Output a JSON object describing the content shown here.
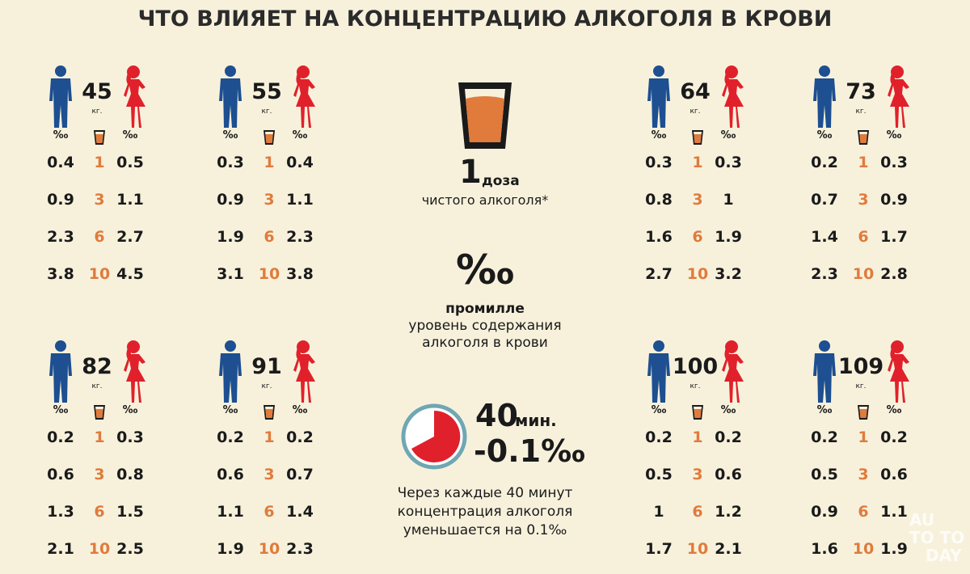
{
  "title": "ЧТО ВЛИЯЕТ НА КОНЦЕНТРАЦИЮ АЛКОГОЛЯ В КРОВИ",
  "units": {
    "weight": "кг.",
    "permille": "‰"
  },
  "panels": [
    {
      "weight": 45,
      "rows": [
        [
          0.4,
          1,
          0.5
        ],
        [
          0.9,
          3,
          1.1
        ],
        [
          2.3,
          6,
          2.7
        ],
        [
          3.8,
          10,
          4.5
        ]
      ]
    },
    {
      "weight": 55,
      "rows": [
        [
          0.3,
          1,
          0.4
        ],
        [
          0.9,
          3,
          1.1
        ],
        [
          1.9,
          6,
          2.3
        ],
        [
          3.1,
          10,
          3.8
        ]
      ]
    },
    {
      "weight": 64,
      "rows": [
        [
          0.3,
          1,
          0.3
        ],
        [
          0.8,
          3,
          1
        ],
        [
          1.6,
          6,
          1.9
        ],
        [
          2.7,
          10,
          3.2
        ]
      ]
    },
    {
      "weight": 73,
      "rows": [
        [
          0.2,
          1,
          0.3
        ],
        [
          0.7,
          3,
          0.9
        ],
        [
          1.4,
          6,
          1.7
        ],
        [
          2.3,
          10,
          2.8
        ]
      ]
    },
    {
      "weight": 82,
      "rows": [
        [
          0.2,
          1,
          0.3
        ],
        [
          0.6,
          3,
          0.8
        ],
        [
          1.3,
          6,
          1.5
        ],
        [
          2.1,
          10,
          2.5
        ]
      ]
    },
    {
      "weight": 91,
      "rows": [
        [
          0.2,
          1,
          0.2
        ],
        [
          0.6,
          3,
          0.7
        ],
        [
          1.1,
          6,
          1.4
        ],
        [
          1.9,
          10,
          2.3
        ]
      ]
    },
    {
      "weight": 100,
      "rows": [
        [
          0.2,
          1,
          0.2
        ],
        [
          0.5,
          3,
          0.6
        ],
        [
          1,
          6,
          1.2
        ],
        [
          1.7,
          10,
          2.1
        ]
      ]
    },
    {
      "weight": 109,
      "rows": [
        [
          0.2,
          1,
          0.2
        ],
        [
          0.5,
          3,
          0.6
        ],
        [
          0.9,
          6,
          1.1
        ],
        [
          1.6,
          10,
          1.9
        ]
      ]
    }
  ],
  "center": {
    "dose_number": "1",
    "dose_word": "доза",
    "dose_caption": "чистого алкоголя*",
    "permille_big": "‰",
    "permille_name": "промилле",
    "permille_desc": [
      "уровень содержания",
      "алкоголя в крови"
    ],
    "minutes": "40",
    "minutes_unit": "мин.",
    "decrease": "-0.1‰",
    "caption": [
      "Через каждые 40 минут",
      "концентрация алкоголя",
      "уменьшается на 0.1‰"
    ]
  },
  "watermark": [
    "AU",
    "TO",
    "TO",
    "DAY"
  ]
}
